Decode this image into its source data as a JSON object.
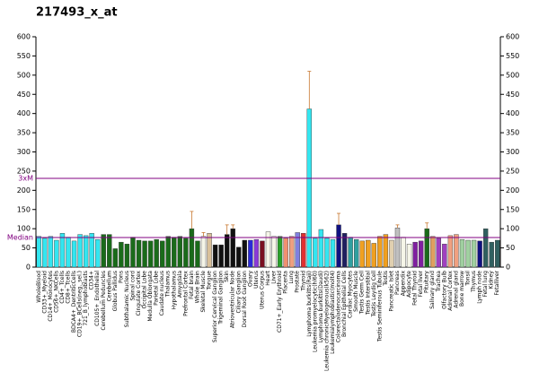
{
  "chart_data": {
    "type": "bar",
    "title": "217493_x_at",
    "categories": [
      "WholeBlood",
      "CD33+_Myeloid",
      "CD14+_Monocytes",
      "CD56+_NKCells",
      "CD4+_Tcells",
      "CD8+_Tcells",
      "BDCA4+_DentriticCells",
      "CD19+_BCells(neg._sel.)",
      "721_B_lymphoblasts",
      "CD34+",
      "CD105+_Endothelial",
      "Cerebellum Peduncles",
      "Cerebellum",
      "Globus Pallidus",
      "Pons",
      "Subthalamic Nucleus",
      "Spinal cord",
      "Cingulate Cortex",
      "Occipital Lobe",
      "Medulla Oblongata",
      "Parietal Lobe",
      "Caudate nucleus",
      "Thalamus",
      "Hypothalamus",
      "Amygdala",
      "Prefrontal Cortex",
      "Fetal brain",
      "Whole Brain",
      "Skeletal Muscle",
      "Tongue",
      "Superior Cervical Ganglion",
      "Trigeminal Ganglion",
      "Skin",
      "Atrioventricular Node",
      "Ciliary Ganglion",
      "Dorsal Root Ganglion",
      "Ovary",
      "Uterus",
      "Uterus Corpus",
      "Heart",
      "Liver",
      "CD71+_Early Erythroid",
      "Placenta",
      "Lung",
      "Prostate",
      "Thyroid",
      "Lymphoma burkitts(Raji)",
      "Leukemia promyelocytic(hl60)",
      "Lymphoma burkitts(Daudi)",
      "Leukemia chronicMyelogenous(k562)",
      "Leukemialymphoblastic(molt4)",
      "Colorectaladenocarcinoma",
      "Bronchial Epithelial Cells",
      "Cardiac Myocytes",
      "Smooth Muscle",
      "Testis Germ Cell",
      "Testis Interstitial",
      "Testis Leydig Cell",
      "Testis Seminiferous Tubule",
      "Testis",
      "Pancreatic Islet",
      "Pancreas",
      "Appendix",
      "Adipocyte",
      "Fetal Thyroid",
      "Fetal liver",
      "Pituitary",
      "Salivary gland",
      "Trachea",
      "Olfactory Bulb",
      "Adrenal Cortex",
      "Adrenal gland",
      "Bone marrow",
      "Tonsil",
      "Thymus",
      "Lymph node",
      "Fetal lung",
      "Kidney",
      "Fetalliver"
    ],
    "values": [
      80,
      75,
      80,
      70,
      88,
      78,
      68,
      85,
      82,
      88,
      72,
      85,
      85,
      48,
      65,
      60,
      78,
      70,
      68,
      68,
      72,
      68,
      80,
      78,
      80,
      75,
      100,
      68,
      80,
      88,
      58,
      58,
      85,
      100,
      52,
      70,
      70,
      72,
      68,
      92,
      80,
      80,
      75,
      80,
      90,
      88,
      412,
      75,
      98,
      75,
      72,
      110,
      88,
      78,
      72,
      68,
      70,
      62,
      80,
      85,
      70,
      102,
      78,
      60,
      65,
      68,
      100,
      80,
      75,
      60,
      82,
      85,
      72,
      70,
      70,
      68,
      100,
      65,
      70
    ],
    "errors": [
      null,
      null,
      null,
      null,
      null,
      null,
      null,
      null,
      null,
      null,
      null,
      null,
      null,
      null,
      null,
      null,
      null,
      null,
      null,
      null,
      null,
      null,
      null,
      null,
      null,
      null,
      45,
      null,
      10,
      null,
      null,
      null,
      25,
      10,
      null,
      null,
      null,
      null,
      null,
      null,
      null,
      null,
      null,
      null,
      null,
      null,
      98,
      null,
      null,
      null,
      null,
      30,
      null,
      null,
      null,
      null,
      null,
      null,
      null,
      null,
      null,
      8,
      null,
      null,
      null,
      null,
      15,
      null,
      null,
      null,
      null,
      null,
      null,
      null,
      null,
      null,
      null,
      null,
      null
    ],
    "colors": [
      "#33e6f0",
      "#33e6f0",
      "#33e6f0",
      "#33e6f0",
      "#33e6f0",
      "#33e6f0",
      "#33e6f0",
      "#33e6f0",
      "#33e6f0",
      "#33e6f0",
      "#33e6f0",
      "#1a6b1a",
      "#1a6b1a",
      "#1a6b1a",
      "#1a6b1a",
      "#1a6b1a",
      "#1a6b1a",
      "#1a6b1a",
      "#1a6b1a",
      "#1a6b1a",
      "#1a6b1a",
      "#1a6b1a",
      "#1a6b1a",
      "#1a6b1a",
      "#1a6b1a",
      "#1a6b1a",
      "#1a6b1a",
      "#1a6b1a",
      "#f5f5e8",
      "#d9c09a",
      "#111111",
      "#111111",
      "#111111",
      "#111111",
      "#111111",
      "#111111",
      "#2a2ad8",
      "#8a3ad8",
      "#7a1020",
      "#f5f5e8",
      "#f5f5e8",
      "#2aa02a",
      "#f09070",
      "#f0a080",
      "#8080e0",
      "#e03030",
      "#33e6f0",
      "#33e6f0",
      "#33e6f0",
      "#33e6f0",
      "#33e6f0",
      "#101080",
      "#202060",
      "#30a0a0",
      "#30a0a0",
      "#f0a020",
      "#f0a020",
      "#f0a020",
      "#f0a020",
      "#f0a020",
      "#e0d0b0",
      "#c0c0c0",
      "#f5f5e8",
      "#f5f5e8",
      "#8020a0",
      "#8020a0",
      "#1a6b1a",
      "#e0a060",
      "#a040c0",
      "#a040c0",
      "#f0a080",
      "#f0a080",
      "#a0d0a0",
      "#a0d0a0",
      "#a0d0a0",
      "#101080",
      "#306060",
      "#306060",
      "#306060"
    ],
    "ylim": [
      0,
      600
    ],
    "yticks": [
      0,
      50,
      100,
      150,
      200,
      250,
      300,
      350,
      400,
      450,
      500,
      550,
      600
    ],
    "y2lim": [
      0,
      600
    ],
    "y2ticks": [
      0,
      50,
      100,
      150,
      200,
      250,
      300,
      350,
      400,
      450,
      500,
      550,
      600
    ],
    "median": 77,
    "median_label": "Median",
    "threshold": 231,
    "threshold_label": "3xM"
  }
}
